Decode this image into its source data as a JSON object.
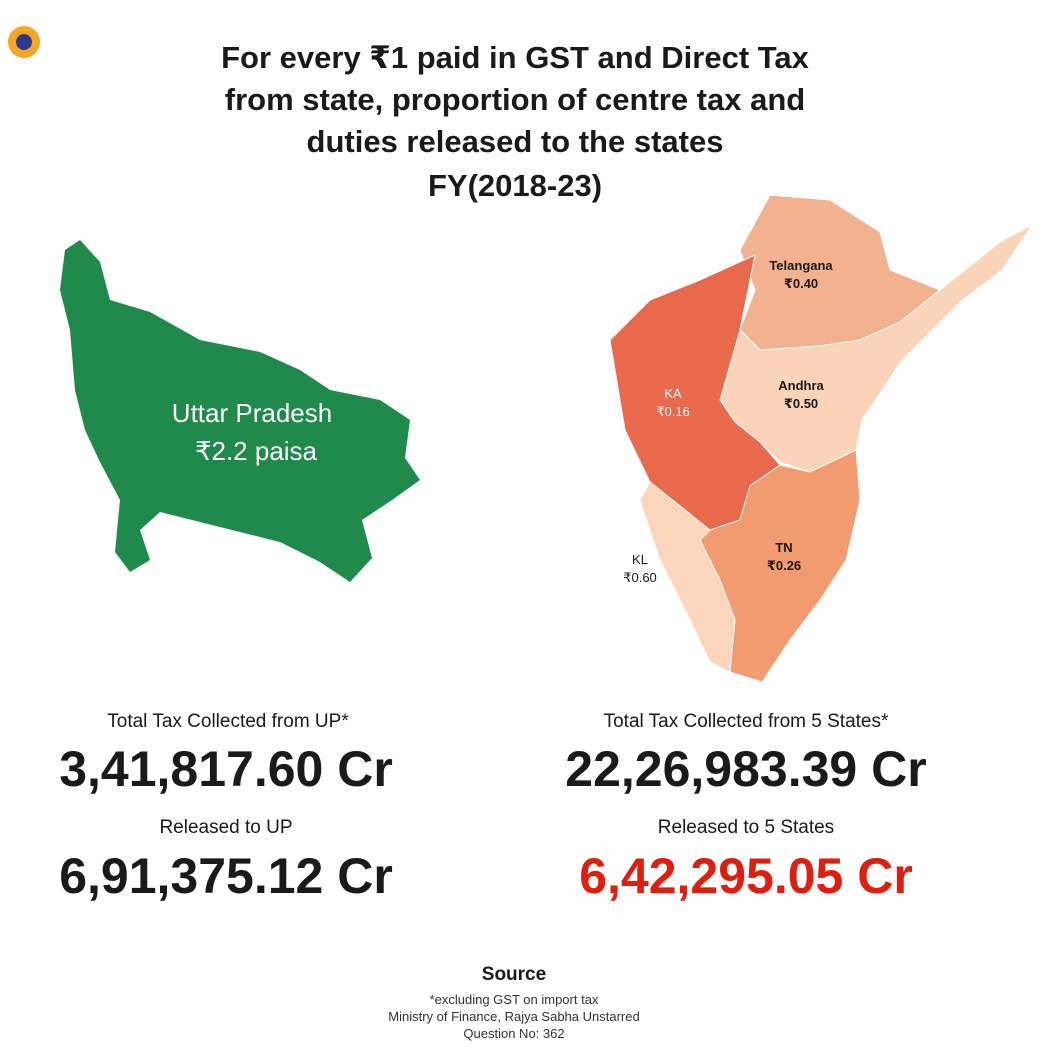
{
  "header": {
    "title": [
      "For every ₹1 paid in GST and Direct Tax",
      "from state, proportion of centre tax and",
      "duties released to the states",
      "FY(2018-23)"
    ]
  },
  "maps": {
    "up": {
      "name": "Uttar Pradesh",
      "value": "₹2.2 paisa"
    },
    "south": [
      {
        "name": "Telangana",
        "value": "₹0.40"
      },
      {
        "name": "Andhra",
        "value": "₹0.50"
      },
      {
        "name": "KA",
        "value": "₹0.16"
      },
      {
        "name": "TN",
        "value": "₹0.26"
      },
      {
        "name": "KL",
        "value": "₹0.60"
      }
    ]
  },
  "stats": {
    "up": [
      {
        "label": "Total Tax Collected from UP*",
        "value": "3,41,817.60 Cr"
      },
      {
        "label": "Released to UP",
        "value": "6,91,375.12 Cr"
      }
    ],
    "south": [
      {
        "label": "Total Tax Collected from 5 States*",
        "value": "22,26,983.39 Cr"
      },
      {
        "label": "Released to 5 States",
        "value": "6,42,295.05 Cr"
      }
    ]
  },
  "source": {
    "title": "Source",
    "lines": [
      "*excluding GST on import tax",
      "Ministry of Finance, Rajya Sabha Unstarred",
      "Question No: 362"
    ]
  }
}
